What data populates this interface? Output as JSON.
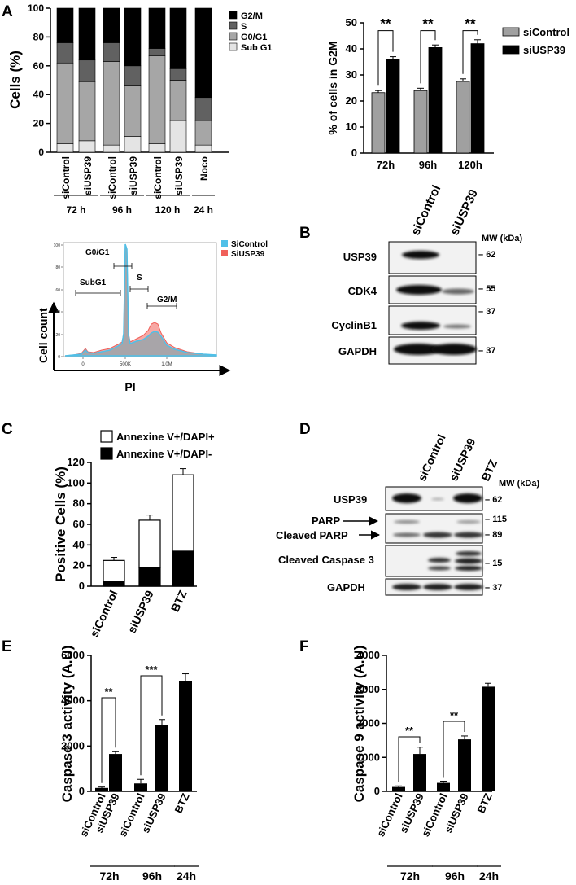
{
  "panels": {
    "A": "A",
    "B": "B",
    "C": "C",
    "D": "D",
    "E": "E",
    "F": "F"
  },
  "chart_data": [
    {
      "id": "A-stacked",
      "type": "bar",
      "stacked": true,
      "ylabel": "Cells (%)",
      "ylim": [
        0,
        100
      ],
      "yticks": [
        0,
        20,
        40,
        60,
        80,
        100
      ],
      "categories": [
        "siControl",
        "siUSP39",
        "siControl",
        "siUSP39",
        "siControl",
        "siUSP39",
        "Noco"
      ],
      "groups": [
        {
          "label": "72 h",
          "span": [
            0,
            1
          ]
        },
        {
          "label": "96 h",
          "span": [
            2,
            3
          ]
        },
        {
          "label": "120 h",
          "span": [
            4,
            5
          ]
        },
        {
          "label": "24 h",
          "span": [
            6,
            6
          ]
        }
      ],
      "legend_position": "top-right",
      "series": [
        {
          "name": "Sub G1",
          "color": "#e4e4e4",
          "values": [
            6,
            8,
            5,
            11,
            6,
            22,
            5
          ]
        },
        {
          "name": "G0/G1",
          "color": "#a6a6a6",
          "values": [
            56,
            41,
            58,
            35,
            61,
            28,
            17
          ]
        },
        {
          "name": "S",
          "color": "#616161",
          "values": [
            14,
            15,
            13,
            14,
            5,
            8,
            16
          ]
        },
        {
          "name": "G2/M",
          "color": "#000000",
          "values": [
            24,
            36,
            24,
            40,
            28,
            42,
            62
          ]
        }
      ]
    },
    {
      "id": "A-G2M",
      "type": "bar",
      "ylabel": "% of cells in G2M",
      "ylim": [
        0,
        50
      ],
      "yticks": [
        0,
        10,
        20,
        30,
        40,
        50
      ],
      "categories": [
        "72h",
        "96h",
        "120h"
      ],
      "legend_position": "right",
      "series": [
        {
          "name": "siControl",
          "color": "#a0a0a0",
          "values": [
            23.2,
            24.0,
            27.5
          ],
          "errors": [
            0.8,
            0.9,
            1.0
          ]
        },
        {
          "name": "siUSP39",
          "color": "#000000",
          "values": [
            36.0,
            40.5,
            42.0
          ],
          "errors": [
            1.0,
            1.0,
            1.5
          ]
        }
      ],
      "significance": [
        "**",
        "**",
        "**"
      ]
    },
    {
      "id": "C",
      "type": "bar",
      "stacked": true,
      "ylabel": "Positive Cells (%)",
      "ylim": [
        0,
        120
      ],
      "yticks": [
        0,
        20,
        40,
        60,
        80,
        100,
        120
      ],
      "categories": [
        "siControl",
        "siUSP39",
        "BTZ"
      ],
      "legend_position": "top",
      "series": [
        {
          "name": "Annexine V+/DAPI-",
          "color": "#000000",
          "values": [
            5,
            18,
            34
          ],
          "errors": [
            1.5,
            3,
            5
          ]
        },
        {
          "name": "Annexine V+/DAPI+",
          "color": "#ffffff",
          "values": [
            20,
            46,
            74
          ],
          "errors": [
            3,
            5,
            6
          ]
        }
      ]
    },
    {
      "id": "E",
      "type": "bar",
      "ylabel": "Caspase 3 activity (A.U)",
      "ylim": [
        0,
        6000
      ],
      "yticks": [
        0,
        2000,
        4000,
        6000
      ],
      "categories": [
        "siControl",
        "siUSP39",
        "siControl",
        "siUSP39",
        "BTZ"
      ],
      "values": [
        150,
        1650,
        350,
        2920,
        4870
      ],
      "errors": [
        40,
        100,
        180,
        250,
        320
      ],
      "groups": [
        {
          "label": "72h",
          "span": [
            0,
            1
          ]
        },
        {
          "label": "96h",
          "span": [
            2,
            3
          ]
        },
        {
          "label": "24h",
          "span": [
            4,
            4
          ]
        }
      ],
      "significance": [
        {
          "pair": [
            0,
            1
          ],
          "label": "**"
        },
        {
          "pair": [
            2,
            3
          ],
          "label": "***"
        }
      ]
    },
    {
      "id": "F",
      "type": "bar",
      "ylabel": "Caspase 9 activity (A.U)",
      "ylim": [
        0,
        4000
      ],
      "yticks": [
        0,
        1000,
        2000,
        3000,
        4000
      ],
      "categories": [
        "siControl",
        "siUSP39",
        "siControl",
        "siUSP39",
        "BTZ"
      ],
      "values": [
        130,
        1100,
        250,
        1530,
        3080
      ],
      "errors": [
        30,
        200,
        50,
        100,
        100
      ],
      "groups": [
        {
          "label": "72h",
          "span": [
            0,
            1
          ]
        },
        {
          "label": "96h",
          "span": [
            2,
            3
          ]
        },
        {
          "label": "24h",
          "span": [
            4,
            4
          ]
        }
      ],
      "significance": [
        {
          "pair": [
            0,
            1
          ],
          "label": "**"
        },
        {
          "pair": [
            2,
            3
          ],
          "label": "**"
        }
      ]
    }
  ],
  "histogram": {
    "ylabel": "Cell count",
    "xlabel": "PI",
    "xticks": [
      "0",
      "500K",
      "1,0M"
    ],
    "yticks": [
      "0",
      "20",
      "40",
      "60",
      "80",
      "100"
    ],
    "gates": {
      "subg1": "SubG1",
      "g0g1": "G0/G1",
      "s": "S",
      "g2m": "G2/M"
    },
    "legend": [
      {
        "name": "SiControl",
        "color": "#4fc0e8"
      },
      {
        "name": "SiUSP39",
        "color": "#f0605a"
      }
    ]
  },
  "blot_B": {
    "headers": [
      "siControl",
      "siUSP39"
    ],
    "mw_title": "MW (kDa)",
    "rows": [
      {
        "label": "USP39",
        "mw": "62"
      },
      {
        "label": "CDK4",
        "mw": "55"
      },
      {
        "label": "CyclinB1",
        "mw": "37"
      },
      {
        "label": "GAPDH",
        "mw": "37"
      }
    ]
  },
  "blot_D": {
    "headers": [
      "siControl",
      "siUSP39",
      "BTZ"
    ],
    "mw_title": "MW (kDa)",
    "rows": [
      {
        "label": "USP39",
        "mw": "62"
      },
      {
        "label": "PARP",
        "mw": "115"
      },
      {
        "label": "Cleaved PARP",
        "mw": "89"
      },
      {
        "label": "Cleaved Caspase 3",
        "mw": "15"
      },
      {
        "label": "GAPDH",
        "mw": "37"
      }
    ]
  }
}
